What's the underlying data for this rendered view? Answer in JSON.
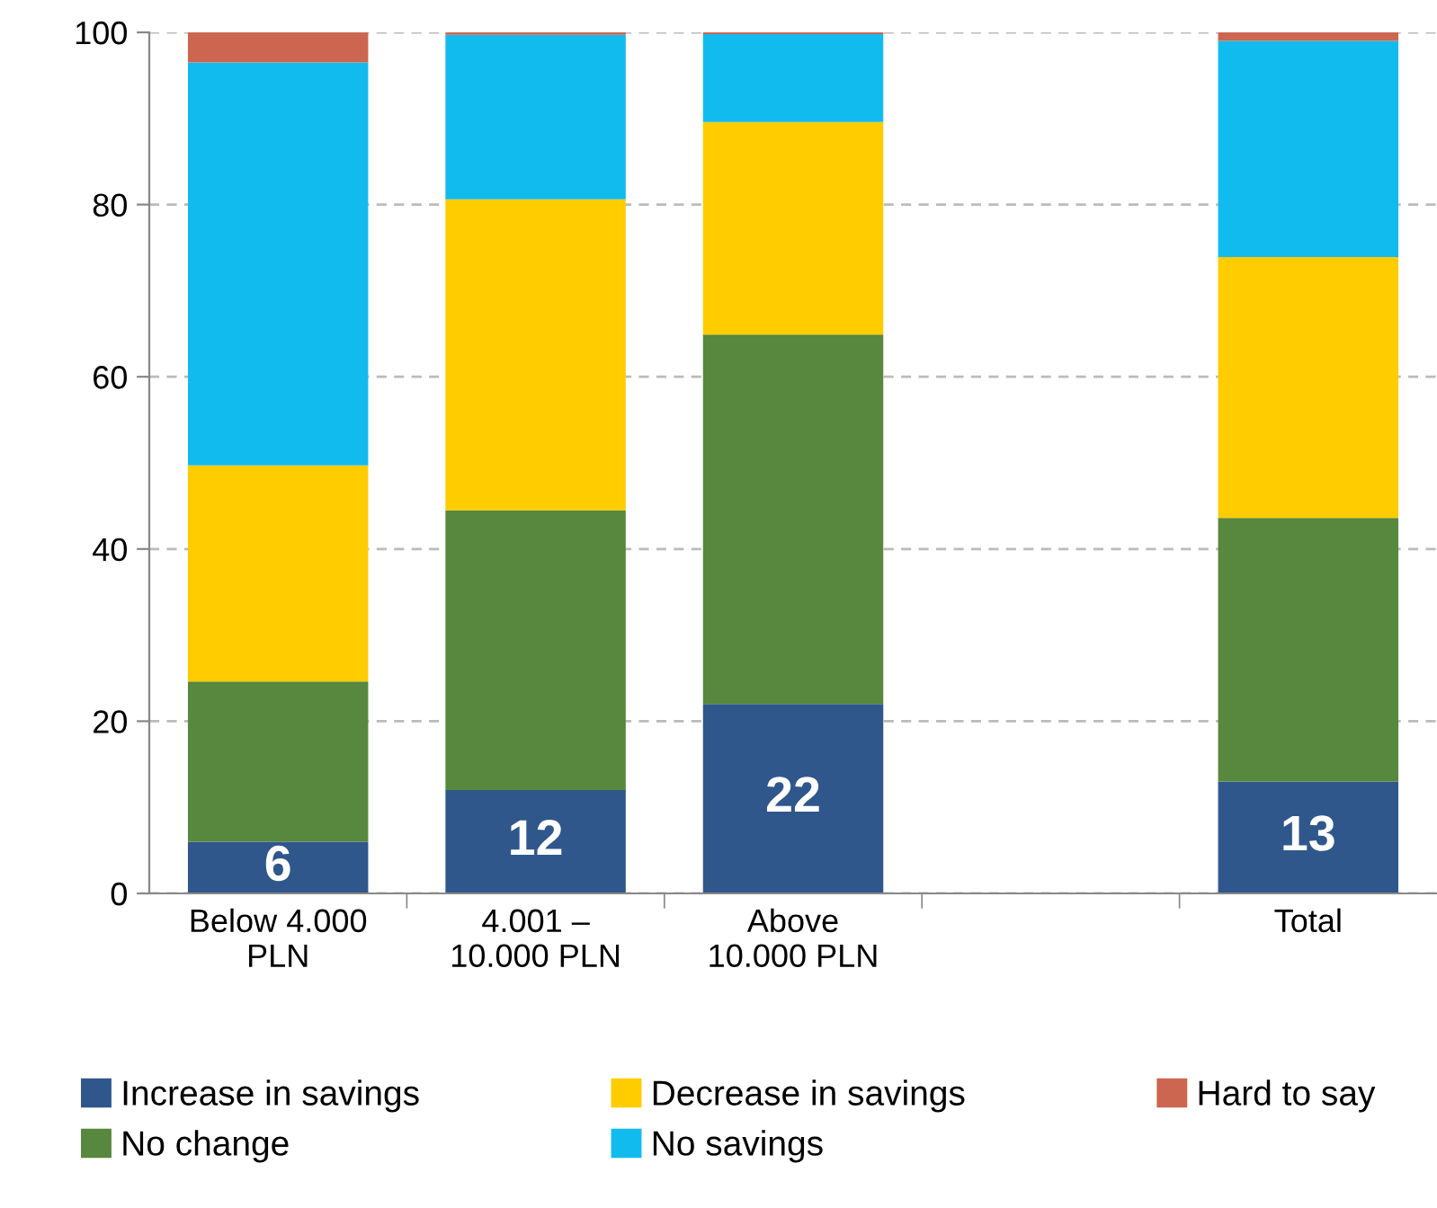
{
  "chart_data": {
    "type": "bar",
    "stacked": true,
    "categories": [
      "Below 4.000\nPLN",
      "4.001 –\n10.000 PLN",
      "Above\n10.000 PLN",
      null,
      "Total"
    ],
    "series": [
      {
        "name": "Increase in savings",
        "color": "#2f578b",
        "values": [
          6,
          12,
          22,
          null,
          13
        ],
        "value_labels": [
          "6",
          "12",
          "22",
          null,
          "13"
        ]
      },
      {
        "name": "No change",
        "color": "#58873e",
        "values": [
          18.6,
          32.5,
          42.9,
          null,
          30.6
        ]
      },
      {
        "name": "Decrease in savings",
        "color": "#ffcc00",
        "values": [
          25.1,
          36.1,
          24.7,
          null,
          30.3
        ]
      },
      {
        "name": "No savings",
        "color": "#12bbee",
        "values": [
          46.8,
          19.1,
          10.2,
          null,
          25.1
        ]
      },
      {
        "name": "Hard to say",
        "color": "#cd6650",
        "values": [
          3.5,
          0.3,
          0.2,
          null,
          1.0
        ]
      }
    ],
    "ylim": [
      0,
      100
    ],
    "yticks": [
      0,
      20,
      40,
      60,
      80,
      100
    ],
    "grid": "y",
    "legend": "bottom"
  }
}
